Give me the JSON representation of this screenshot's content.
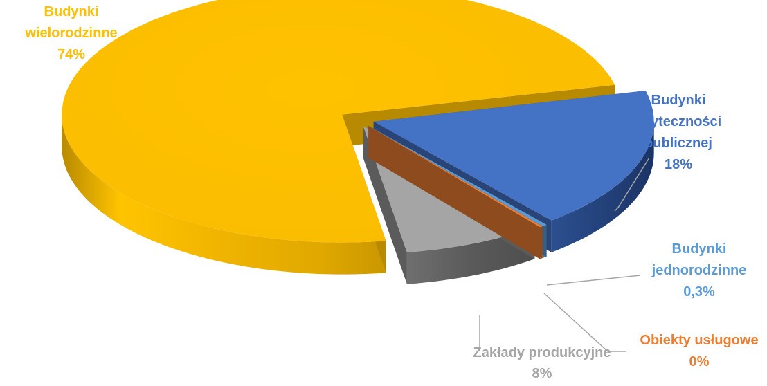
{
  "chart_data": {
    "type": "pie",
    "style": "3d exploded pie",
    "title": "",
    "legend": "none",
    "slices": [
      {
        "name": "Budynki wielorodzinne",
        "value": 74,
        "value_label": "74%",
        "color": "#FFC000",
        "label_color": "#FFC000"
      },
      {
        "name": "Budynki użyteczności publicznej",
        "value": 18,
        "value_label": "18%",
        "color": "#4472C4",
        "label_color": "#4472C4"
      },
      {
        "name": "Budynki jednorodzinne",
        "value": 0.3,
        "value_label": "0,3%",
        "color": "#5B9BD5",
        "label_color": "#5B9BD5"
      },
      {
        "name": "Obiekty usługowe",
        "value": 0,
        "value_label": "0%",
        "color": "#ED7D31",
        "label_color": "#ED7D31"
      },
      {
        "name": "Zakłady produkcyjne",
        "value": 8,
        "value_label": "8%",
        "color": "#A5A5A5",
        "label_color": "#A5A5A5"
      }
    ],
    "labels": {
      "wielorodzinne": {
        "lines": [
          "Budynki",
          "wielorodzinne"
        ],
        "value": "74%"
      },
      "publiczne": {
        "lines": [
          "Budynki",
          "użyteczności",
          "publicznej"
        ],
        "value": "18%"
      },
      "jednorodzinne": {
        "lines": [
          "Budynki",
          "jednorodzinne"
        ],
        "value": "0,3%"
      },
      "uslugowe": {
        "lines": [
          "Obiekty usługowe"
        ],
        "value": "0%"
      },
      "produkcyjne": {
        "lines": [
          "Zakłady produkcyjne"
        ],
        "value": "8%"
      }
    },
    "colors": {
      "leader_line": "#A5A5A5"
    }
  }
}
